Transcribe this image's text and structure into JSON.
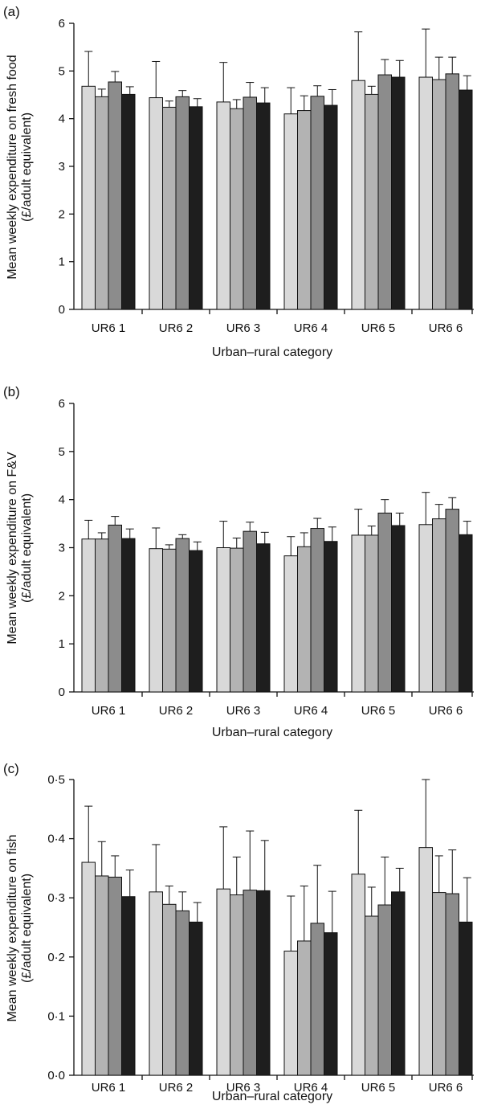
{
  "chart_data": [
    {
      "type": "bar",
      "panel_label": "(a)",
      "title": "",
      "xlabel": "Urban–rural category",
      "ylabel_lines": [
        "Mean weekly expenditure on fresh food",
        "(£/adult equivalent)"
      ],
      "ylim": [
        0,
        6
      ],
      "yticks": [
        "0",
        "1",
        "2",
        "3",
        "4",
        "5",
        "6"
      ],
      "grid": false,
      "categories": [
        "UR6 1",
        "UR6 2",
        "UR6 3",
        "UR6 4",
        "UR6 5",
        "UR6 6"
      ],
      "series_colors": [
        "#d9d9d9",
        "#b3b3b3",
        "#8c8c8c",
        "#1e1e1e"
      ],
      "series": [
        {
          "values": [
            4.68,
            4.44,
            4.35,
            4.1,
            4.8,
            4.87
          ],
          "error": [
            0.73,
            0.76,
            0.83,
            0.55,
            1.02,
            1.01
          ]
        },
        {
          "values": [
            4.46,
            4.24,
            4.21,
            4.17,
            4.51,
            4.82
          ],
          "error": [
            0.16,
            0.13,
            0.19,
            0.31,
            0.17,
            0.47
          ]
        },
        {
          "values": [
            4.77,
            4.46,
            4.45,
            4.47,
            4.92,
            4.94
          ],
          "error": [
            0.22,
            0.13,
            0.31,
            0.22,
            0.32,
            0.35
          ]
        },
        {
          "values": [
            4.51,
            4.25,
            4.33,
            4.28,
            4.87,
            4.6
          ],
          "error": [
            0.16,
            0.17,
            0.32,
            0.33,
            0.35,
            0.3
          ]
        }
      ]
    },
    {
      "type": "bar",
      "panel_label": "(b)",
      "title": "",
      "xlabel": "Urban–rural category",
      "ylabel_lines": [
        "Mean weekly expenditure on F&V",
        "(£/adult equivalent)"
      ],
      "ylim": [
        0,
        6
      ],
      "yticks": [
        "0",
        "1",
        "2",
        "3",
        "4",
        "5",
        "6"
      ],
      "grid": false,
      "categories": [
        "UR6 1",
        "UR6 2",
        "UR6 3",
        "UR6 4",
        "UR6 5",
        "UR6 6"
      ],
      "series_colors": [
        "#d9d9d9",
        "#b3b3b3",
        "#8c8c8c",
        "#1e1e1e"
      ],
      "series": [
        {
          "values": [
            3.18,
            2.98,
            3.0,
            2.83,
            3.26,
            3.48
          ],
          "error": [
            0.39,
            0.43,
            0.55,
            0.4,
            0.54,
            0.67
          ]
        },
        {
          "values": [
            3.18,
            2.97,
            2.99,
            3.02,
            3.26,
            3.6
          ],
          "error": [
            0.13,
            0.09,
            0.21,
            0.29,
            0.19,
            0.3
          ]
        },
        {
          "values": [
            3.47,
            3.19,
            3.34,
            3.4,
            3.72,
            3.8
          ],
          "error": [
            0.18,
            0.08,
            0.19,
            0.21,
            0.28,
            0.24
          ]
        },
        {
          "values": [
            3.19,
            2.94,
            3.08,
            3.13,
            3.46,
            3.27
          ],
          "error": [
            0.2,
            0.18,
            0.24,
            0.3,
            0.26,
            0.28
          ]
        }
      ]
    },
    {
      "type": "bar",
      "panel_label": "(c)",
      "title": "",
      "xlabel": "Urban–rural category",
      "ylabel_lines": [
        "Mean weekly expenditure on fish",
        "(£/adult equivalent)"
      ],
      "ylim": [
        0,
        0.5
      ],
      "yticks": [
        "0·0",
        "0·1",
        "0·2",
        "0·3",
        "0·4",
        "0·5"
      ],
      "grid": false,
      "categories": [
        "UR6 1",
        "UR6 2",
        "UR6 3",
        "UR6 4",
        "UR6 5",
        "UR6 6"
      ],
      "series_colors": [
        "#d9d9d9",
        "#b3b3b3",
        "#8c8c8c",
        "#1e1e1e"
      ],
      "series": [
        {
          "values": [
            0.36,
            0.31,
            0.315,
            0.21,
            0.34,
            0.385
          ],
          "error": [
            0.095,
            0.08,
            0.105,
            0.093,
            0.108,
            0.115
          ]
        },
        {
          "values": [
            0.337,
            0.289,
            0.305,
            0.227,
            0.269,
            0.309
          ],
          "error": [
            0.058,
            0.031,
            0.064,
            0.093,
            0.049,
            0.062
          ]
        },
        {
          "values": [
            0.335,
            0.278,
            0.313,
            0.257,
            0.288,
            0.307
          ],
          "error": [
            0.036,
            0.032,
            0.1,
            0.098,
            0.081,
            0.074
          ]
        },
        {
          "values": [
            0.302,
            0.259,
            0.312,
            0.241,
            0.31,
            0.259
          ],
          "error": [
            0.045,
            0.033,
            0.085,
            0.07,
            0.04,
            0.075
          ]
        }
      ]
    }
  ]
}
